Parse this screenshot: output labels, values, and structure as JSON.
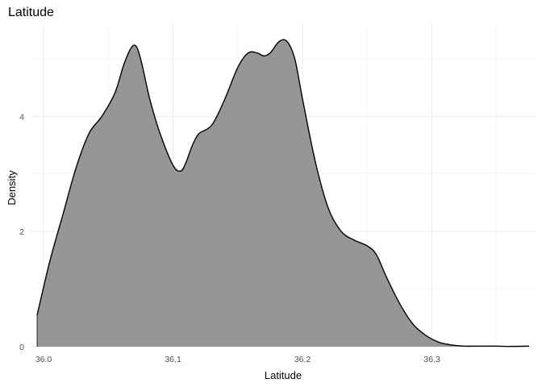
{
  "chart_data": {
    "type": "area",
    "title": "Latitude",
    "xlabel": "Latitude",
    "ylabel": "Density",
    "xlim": [
      35.99,
      36.38
    ],
    "ylim": [
      0,
      5.6
    ],
    "x_ticks": [
      36.0,
      36.1,
      36.2,
      36.3
    ],
    "x_tick_labels": [
      "36.0",
      "36.1",
      "36.2",
      "36.3"
    ],
    "y_ticks": [
      0,
      2,
      4
    ],
    "y_tick_labels": [
      "0",
      "2",
      "4"
    ],
    "grid": true,
    "legend": "none",
    "fill_color": "#969696",
    "line_color": "#000000",
    "series": [
      {
        "x": [
          35.995,
          36.005,
          36.015,
          36.025,
          36.035,
          36.045,
          36.055,
          36.062,
          36.068,
          36.072,
          36.076,
          36.082,
          36.09,
          36.1,
          36.106,
          36.11,
          36.115,
          36.12,
          36.13,
          36.14,
          36.15,
          36.158,
          36.165,
          36.17,
          36.175,
          36.182,
          36.188,
          36.194,
          36.2,
          36.21,
          36.22,
          36.23,
          36.24,
          36.25,
          36.257,
          36.265,
          36.275,
          36.285,
          36.295,
          36.305,
          36.315,
          36.325,
          36.34,
          36.35,
          36.36,
          36.375
        ],
        "y": [
          0.55,
          1.5,
          2.3,
          3.1,
          3.7,
          4.0,
          4.4,
          4.9,
          5.2,
          5.2,
          4.9,
          4.3,
          3.7,
          3.15,
          3.05,
          3.2,
          3.5,
          3.7,
          3.85,
          4.3,
          4.85,
          5.1,
          5.1,
          5.05,
          5.1,
          5.3,
          5.3,
          5.0,
          4.3,
          3.2,
          2.4,
          2.0,
          1.85,
          1.75,
          1.6,
          1.2,
          0.75,
          0.4,
          0.2,
          0.08,
          0.03,
          0.01,
          0.01,
          0.01,
          0.005,
          0.01
        ]
      }
    ]
  }
}
